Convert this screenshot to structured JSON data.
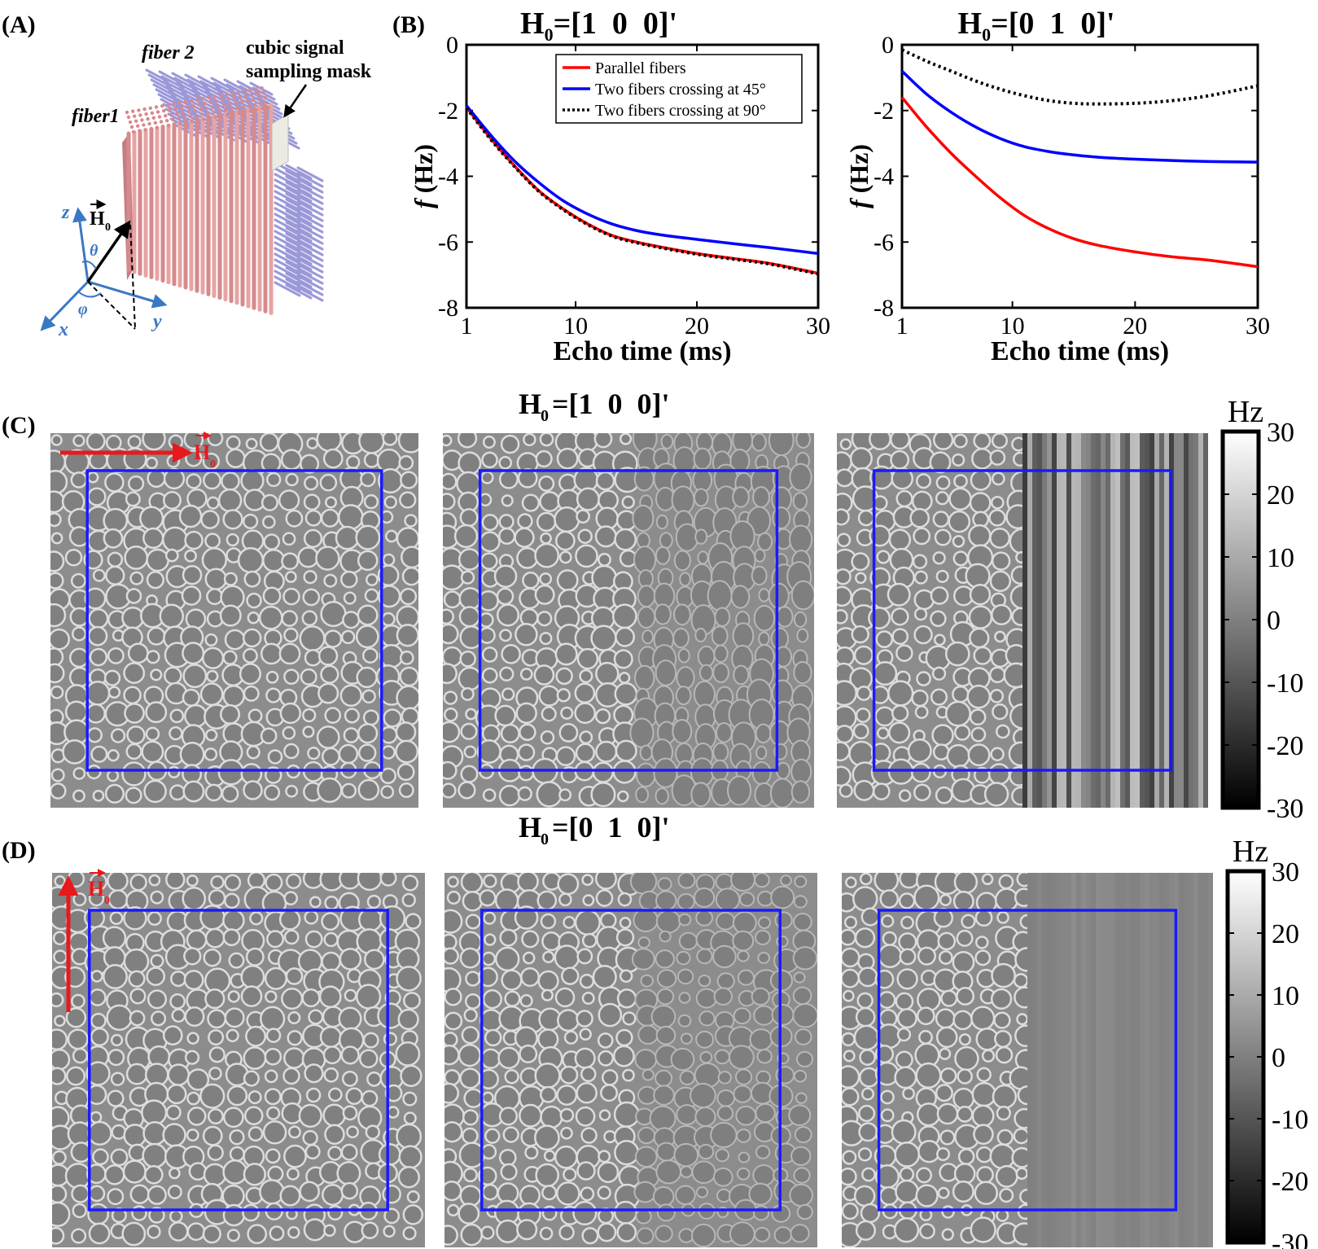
{
  "panels": {
    "A": {
      "label": "(A)",
      "fiber2": "fiber 2",
      "fiber1": "fiber1",
      "mask_line1": "cubic signal",
      "mask_line2": "sampling mask",
      "axis_z": "z",
      "axis_x": "x",
      "axis_y": "y",
      "theta": "θ",
      "phi": "φ",
      "field": "H",
      "field_sub": "0"
    },
    "B": {
      "label": "(B)"
    },
    "C": {
      "label": "(C)",
      "title": "H0=[1  0  0]'",
      "title_main": "H",
      "title_sub": "0",
      "title_rest": "=[1  0  0]'",
      "colorbar_unit": "Hz",
      "colorbar_ticks": [
        "30",
        "20",
        "10",
        "0",
        "-10",
        "-20",
        "-30"
      ],
      "field": "H",
      "field_sub": "0",
      "field_direction": "x"
    },
    "D": {
      "label": "(D)",
      "title": "H0=[0  1  0]'",
      "title_main": "H",
      "title_sub": "0",
      "title_rest": "=[0  1  0]'",
      "colorbar_unit": "Hz",
      "colorbar_ticks": [
        "30",
        "20",
        "10",
        "0",
        "-10",
        "-20",
        "-30"
      ],
      "field": "H",
      "field_sub": "0",
      "field_direction": "y"
    }
  },
  "colors": {
    "parallel": "#ff0000",
    "crossing45": "#0000ff",
    "crossing90": "#000000",
    "mask_box": "#1a1aff",
    "field_arrow": "#e8191c",
    "axis_blue": "#3a78c4"
  },
  "chart_data": [
    {
      "type": "line",
      "title": "H0=[1  0  0]'",
      "title_main": "H",
      "title_sub": "0",
      "title_rest": "=[1  0  0]'",
      "xlabel": "Echo time (ms)",
      "ylabel_italic": "f",
      "ylabel_rest": " (Hz)",
      "xlim": [
        1,
        30
      ],
      "ylim": [
        -8,
        0
      ],
      "xticks": [
        "1",
        "10",
        "20",
        "30"
      ],
      "yticks": [
        "0",
        "-2",
        "-4",
        "-6",
        "-8"
      ],
      "xtick_values": [
        1,
        10,
        20,
        30
      ],
      "ytick_values": [
        0,
        -2,
        -4,
        -6,
        -8
      ],
      "legend_position": "top-right",
      "x": [
        1,
        3,
        5,
        7,
        9,
        11,
        13,
        15,
        17,
        20,
        23,
        26,
        30
      ],
      "series": [
        {
          "name": "Parallel fibers",
          "style": "solid",
          "color": "#ff0000",
          "values": [
            -1.9,
            -2.85,
            -3.7,
            -4.45,
            -5.0,
            -5.45,
            -5.8,
            -6.0,
            -6.15,
            -6.35,
            -6.5,
            -6.65,
            -6.95
          ]
        },
        {
          "name": "Two fibers crossing at 45°",
          "style": "solid",
          "color": "#0000ff",
          "values": [
            -1.85,
            -2.75,
            -3.55,
            -4.2,
            -4.75,
            -5.15,
            -5.45,
            -5.65,
            -5.78,
            -5.92,
            -6.05,
            -6.17,
            -6.35
          ]
        },
        {
          "name": "Two fibers crossing at 90°",
          "style": "dotted",
          "color": "#000000",
          "values": [
            -1.92,
            -2.88,
            -3.72,
            -4.47,
            -5.02,
            -5.47,
            -5.82,
            -6.02,
            -6.17,
            -6.37,
            -6.52,
            -6.67,
            -6.97
          ]
        }
      ]
    },
    {
      "type": "line",
      "title": "H0=[0  1  0]'",
      "title_main": "H",
      "title_sub": "0",
      "title_rest": "=[0  1  0]'",
      "xlabel": "Echo time (ms)",
      "ylabel_italic": "f",
      "ylabel_rest": " (Hz)",
      "xlim": [
        1,
        30
      ],
      "ylim": [
        -8,
        0
      ],
      "xticks": [
        "1",
        "10",
        "20",
        "30"
      ],
      "yticks": [
        "0",
        "-2",
        "-4",
        "-6",
        "-8"
      ],
      "xtick_values": [
        1,
        10,
        20,
        30
      ],
      "ytick_values": [
        0,
        -2,
        -4,
        -6,
        -8
      ],
      "x": [
        1,
        3,
        5,
        7,
        9,
        11,
        13,
        15,
        17,
        20,
        23,
        26,
        30
      ],
      "series": [
        {
          "style": "solid",
          "color": "#ff0000",
          "values": [
            -1.6,
            -2.5,
            -3.3,
            -4.0,
            -4.65,
            -5.2,
            -5.6,
            -5.9,
            -6.1,
            -6.3,
            -6.45,
            -6.55,
            -6.75
          ]
        },
        {
          "style": "solid",
          "color": "#0000ff",
          "values": [
            -0.8,
            -1.5,
            -2.05,
            -2.5,
            -2.85,
            -3.1,
            -3.25,
            -3.35,
            -3.42,
            -3.48,
            -3.52,
            -3.55,
            -3.57
          ]
        },
        {
          "style": "dotted",
          "color": "#000000",
          "values": [
            -0.15,
            -0.5,
            -0.8,
            -1.1,
            -1.35,
            -1.55,
            -1.7,
            -1.78,
            -1.8,
            -1.78,
            -1.7,
            -1.55,
            -1.25
          ]
        }
      ]
    }
  ]
}
